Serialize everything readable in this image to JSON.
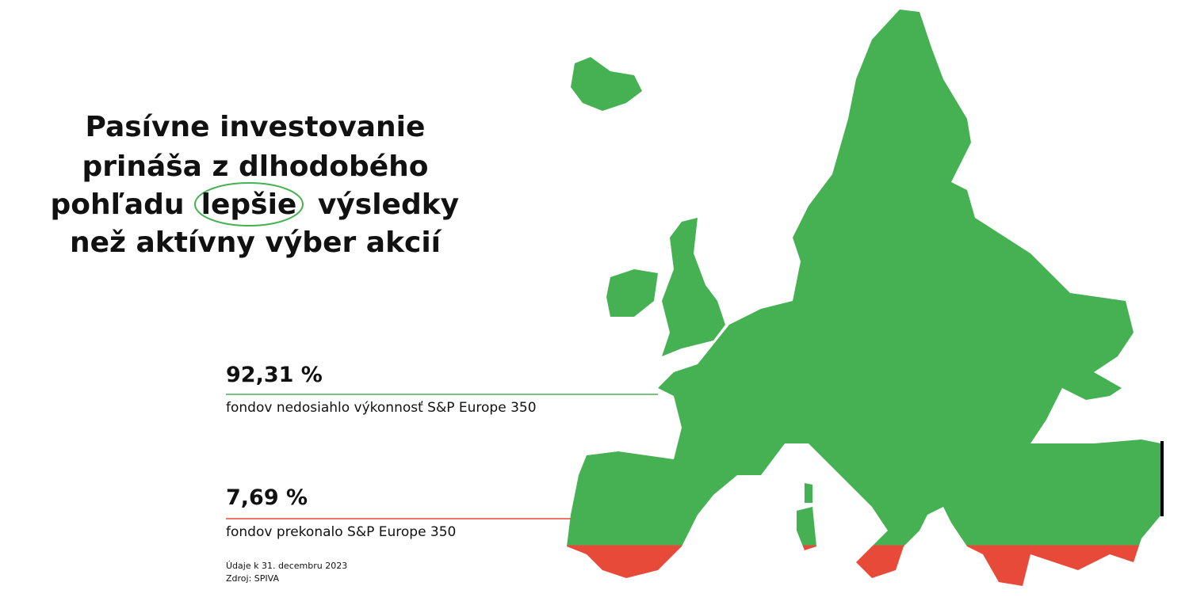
{
  "chart_data": {
    "type": "map-fill",
    "title_lines": [
      "Pasívne investovanie",
      "prináša z dlhodobého",
      "pohľadu",
      "lepšie",
      "výsledky",
      "než aktívny výber akcií"
    ],
    "categories": [
      "fondov nedosiahlo výkonnosť S&P Europe 350",
      "fondov prekonalo S&P Europe 350"
    ],
    "values": [
      92.31,
      7.69
    ],
    "value_labels": [
      "92,31 %",
      "7,69 %"
    ],
    "colors": [
      "#45b152",
      "#e84a3a"
    ],
    "notes": [
      "Údaje k 31. decembru 2023",
      "Zdroj: SPIVA"
    ]
  }
}
